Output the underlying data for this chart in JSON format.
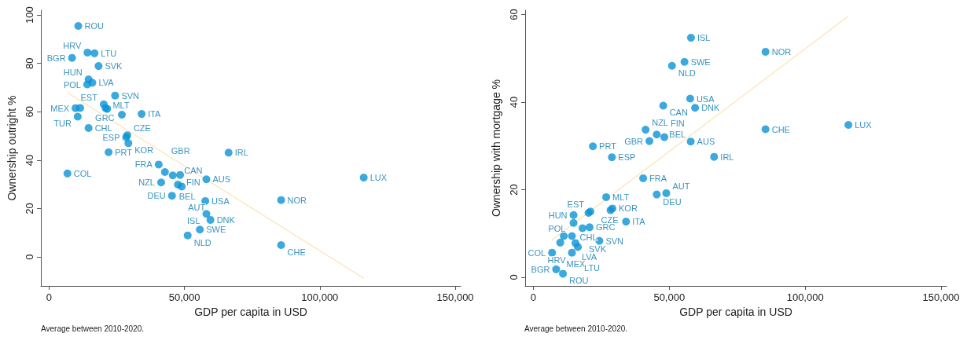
{
  "chart_data": [
    {
      "type": "scatter",
      "xlabel": "GDP per capita in USD",
      "ylabel": "Ownership outright %",
      "annotations": [
        "Average between 2010-2020."
      ],
      "marker": "circle",
      "xlim": [
        -3000,
        152000
      ],
      "xticks": [
        0,
        {
          "value": 50000,
          "label": "50,000"
        },
        {
          "value": 100000,
          "label": "100,000"
        },
        {
          "value": 150000,
          "label": "150,000"
        }
      ],
      "ylim": [
        -12,
        102
      ],
      "yticks": [
        0,
        20,
        40,
        60,
        80,
        100
      ],
      "series": [
        {
          "type": "scatter",
          "color": "#0a93d4",
          "x": [
            10800,
            14200,
            16800,
            8500,
            18300,
            14600,
            14100,
            16000,
            24400,
            20200,
            20900,
            21500,
            9800,
            11500,
            26900,
            34200,
            10600,
            14600,
            28500,
            28900,
            29300,
            22000,
            66300,
            40500,
            6800,
            42800,
            45700,
            48400,
            41400,
            47600,
            49000,
            58100,
            45400,
            57700,
            58100,
            59600,
            55700,
            51200,
            85700,
            85700,
            116200
          ],
          "values": [
            95.5,
            84.5,
            84.2,
            82.3,
            78.9,
            73.4,
            71.3,
            72,
            66.7,
            63.1,
            61.5,
            61.2,
            61.5,
            61.6,
            58.8,
            59.1,
            58,
            53.3,
            49.5,
            50.3,
            47,
            43.3,
            43.1,
            38.2,
            34.5,
            35.1,
            33.7,
            33.9,
            30.8,
            29.9,
            29.1,
            32.1,
            25.3,
            23.1,
            17.8,
            15.3,
            11.3,
            8.9,
            23.5,
            4.9,
            32.8
          ],
          "value_labels": [
            "ROU",
            "HRV",
            "LTU",
            "BGR",
            "SVK",
            "HUN",
            "POL",
            "LVA",
            "SVN",
            "EST",
            "GRC",
            null,
            "MEX",
            null,
            "MLT",
            "ITA",
            "TUR",
            "CHL",
            "ESP",
            "CZE",
            "KOR",
            "PRT",
            "IRL",
            "FRA",
            "COL",
            "GBR",
            "BEL",
            "FIN",
            "NZL",
            "CAN",
            "AUT",
            "AUS",
            "DEU",
            "USA",
            "ISL",
            "DNK",
            "SWE",
            "NLD",
            "NOR",
            "CHE",
            "LUX"
          ]
        },
        {
          "type": "line",
          "color": "#fde2b0",
          "marker": "none",
          "line_style": "solid",
          "x": [
            6800,
            116200
          ],
          "values": [
            67.9,
            -8.8
          ]
        }
      ]
    },
    {
      "type": "scatter",
      "xlabel": "GDP per capita in USD",
      "ylabel": "Ownership with mortgage %",
      "annotations": [
        "Average between 2010-2020."
      ],
      "marker": "circle",
      "xlim": [
        -3000,
        152000
      ],
      "xticks": [
        0,
        {
          "value": 50000,
          "label": "50,000"
        },
        {
          "value": 100000,
          "label": "100,000"
        },
        {
          "value": 150000,
          "label": "150,000"
        }
      ],
      "ylim": [
        -2,
        61
      ],
      "yticks": [
        0,
        20,
        40,
        60
      ],
      "series": [
        {
          "type": "scatter",
          "color": "#0a93d4",
          "x": [
            58000,
            55600,
            51000,
            57700,
            47800,
            59500,
            41300,
            45400,
            48200,
            42700,
            57900,
            21900,
            28900,
            66500,
            40400,
            45400,
            48900,
            26800,
            29100,
            28400,
            21000,
            20300,
            14800,
            14800,
            34100,
            18100,
            20700,
            14200,
            11200,
            9900,
            15500,
            16400,
            24300,
            6900,
            14200,
            8400,
            10900,
            85400,
            85400,
            115900
          ],
          "values": [
            54.7,
            49.2,
            48.3,
            40.8,
            39.2,
            38.7,
            33.7,
            32.6,
            32,
            31.1,
            31,
            29.9,
            27.4,
            27.5,
            22.6,
            18.9,
            19.2,
            18.3,
            15.7,
            15.3,
            15,
            14.7,
            14.2,
            12.4,
            12.7,
            11.2,
            11.4,
            9.4,
            9.4,
            7.9,
            7.8,
            6.9,
            8.3,
            5.6,
            5.6,
            1.8,
            0.8,
            51.5,
            33.8,
            34.8
          ],
          "value_labels": [
            "ISL",
            "SWE",
            "NLD",
            "USA",
            "CAN",
            "DNK",
            "NZL",
            "BEL",
            "FIN",
            "GBR",
            "AUS",
            "PRT",
            "ESP",
            "IRL",
            "FRA",
            "DEU",
            "AUT",
            "MLT",
            "KOR",
            "CZE",
            "EST",
            null,
            "HUN",
            "CHL",
            "ITA",
            "SVK",
            "GRC",
            "POL",
            null,
            "MEX",
            "LVA",
            "LTU",
            "SVN",
            "COL",
            "HRV",
            "BGR",
            "ROU",
            "NOR",
            "CHE",
            "LUX"
          ]
        },
        {
          "type": "line",
          "color": "#fde2b0",
          "marker": "none",
          "line_style": "solid",
          "x": [
            6900,
            115800
          ],
          "values": [
            8.5,
            59.6
          ]
        }
      ]
    }
  ]
}
